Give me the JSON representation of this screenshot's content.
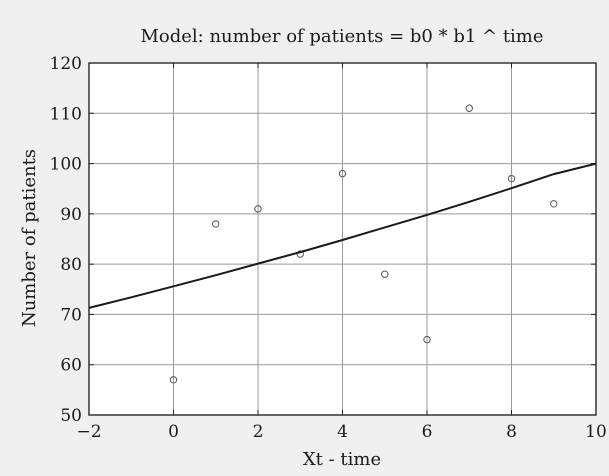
{
  "chart_data": {
    "type": "scatter",
    "title": "Model: number of patients = b0 * b1 ^ time",
    "xlabel": "Xt - time",
    "ylabel": "Number of patients",
    "xlim": [
      -2,
      10
    ],
    "ylim": [
      50,
      120
    ],
    "xticks": [
      -2,
      0,
      2,
      4,
      6,
      8,
      10
    ],
    "yticks": [
      50,
      60,
      70,
      80,
      90,
      100,
      110,
      120
    ],
    "grid": true,
    "series": [
      {
        "kind": "scatter",
        "marker": "open-circle",
        "x": [
          0,
          1,
          2,
          3,
          4,
          5,
          6,
          7,
          8,
          9
        ],
        "y": [
          57,
          88,
          91,
          82,
          98,
          78,
          65,
          111,
          97,
          92
        ]
      },
      {
        "kind": "line",
        "x": [
          -2,
          -1,
          0,
          1,
          2,
          3,
          4,
          5,
          6,
          7,
          8,
          9,
          10
        ],
        "y": [
          71.3,
          73.4,
          75.6,
          77.8,
          80.1,
          82.4,
          84.8,
          87.3,
          89.8,
          92.4,
          95.1,
          97.9,
          100.0
        ]
      }
    ],
    "colors": {
      "background": "#f0f0f0",
      "plot_area": "#ffffff",
      "grid": "#9a9a9a",
      "markers": "#555555",
      "fit_line": "#1a1a1a"
    }
  }
}
